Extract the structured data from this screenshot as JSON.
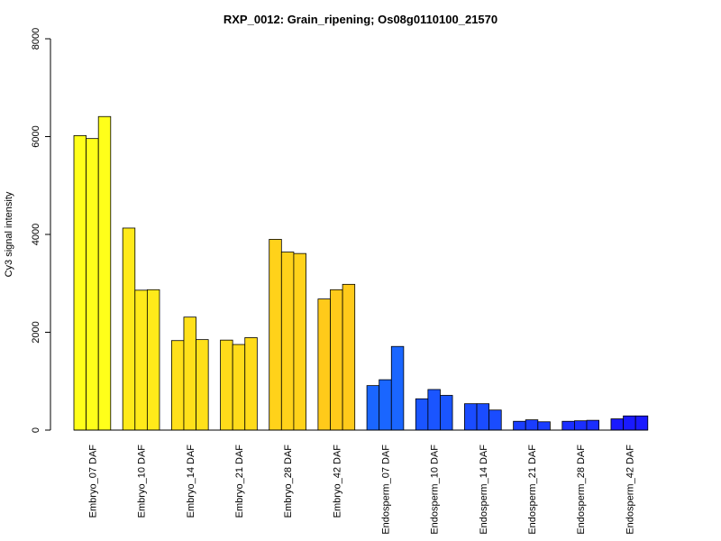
{
  "chart_data": {
    "type": "bar",
    "title": "RXP_0012: Grain_ripening; Os08g0110100_21570",
    "xlabel": "",
    "ylabel": "Cy3 signal intensity",
    "ylim": [
      0,
      8000
    ],
    "yticks": [
      0,
      2000,
      4000,
      6000,
      8000
    ],
    "categories": [
      "Embryo_07 DAF",
      "Embryo_10 DAF",
      "Embryo_14 DAF",
      "Embryo_21 DAF",
      "Embryo_28 DAF",
      "Embryo_42 DAF",
      "Endosperm_07 DAF",
      "Endosperm_10 DAF",
      "Endosperm_14 DAF",
      "Endosperm_21 DAF",
      "Endosperm_28 DAF",
      "Endosperm_42 DAF"
    ],
    "colors": [
      "#ffff1a",
      "#ffea1a",
      "#ffe01a",
      "#ffdb1a",
      "#ffd21a",
      "#ffca1a",
      "#1a66ff",
      "#1a55ff",
      "#1a4cff",
      "#1a3dff",
      "#1a2eff",
      "#1a1aff"
    ],
    "replicates": [
      [
        6020,
        5960,
        6410
      ],
      [
        4130,
        2860,
        2870
      ],
      [
        1830,
        2310,
        1850
      ],
      [
        1840,
        1750,
        1890
      ],
      [
        3900,
        3640,
        3610
      ],
      [
        2680,
        2870,
        2980
      ],
      [
        910,
        1030,
        1710
      ],
      [
        640,
        830,
        710
      ],
      [
        540,
        540,
        410
      ],
      [
        180,
        210,
        170
      ],
      [
        180,
        190,
        200
      ],
      [
        230,
        290,
        290
      ]
    ],
    "grid": false,
    "legend": "none"
  }
}
